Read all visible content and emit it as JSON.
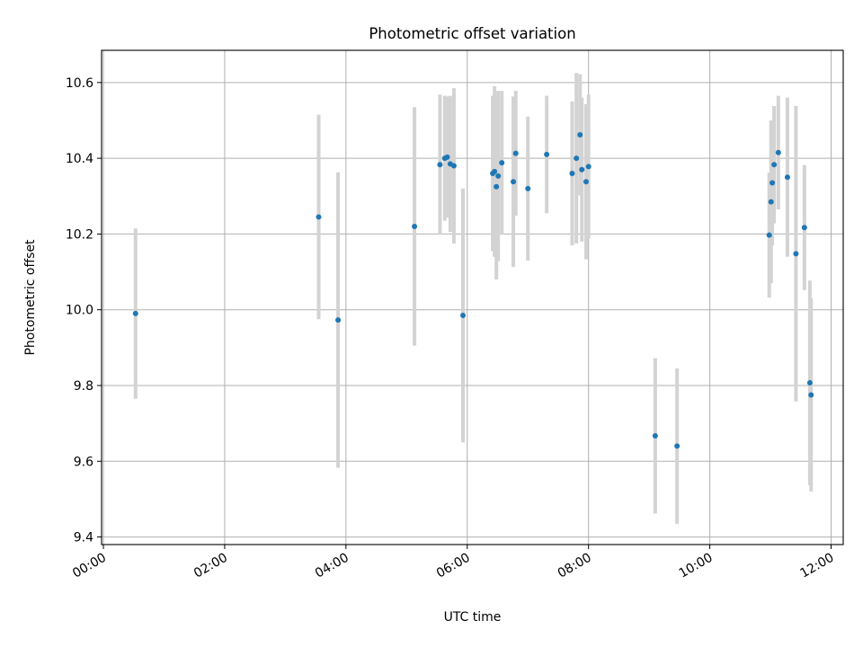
{
  "chart_data": {
    "type": "scatter",
    "title": "Photometric offset variation",
    "xlabel": "UTC time",
    "ylabel": "Photometric offset",
    "x_unit": "UTC hours",
    "xlim": [
      -0.03,
      12.2
    ],
    "ylim": [
      9.38,
      10.685
    ],
    "xticks": [
      {
        "value": 0,
        "label": "00:00"
      },
      {
        "value": 2,
        "label": "02:00"
      },
      {
        "value": 4,
        "label": "04:00"
      },
      {
        "value": 6,
        "label": "06:00"
      },
      {
        "value": 8,
        "label": "08:00"
      },
      {
        "value": 10,
        "label": "10:00"
      },
      {
        "value": 12,
        "label": "12:00"
      }
    ],
    "yticks": [
      {
        "value": 9.4,
        "label": "9.4"
      },
      {
        "value": 9.6,
        "label": "9.6"
      },
      {
        "value": 9.8,
        "label": "9.8"
      },
      {
        "value": 10.0,
        "label": "10.0"
      },
      {
        "value": 10.2,
        "label": "10.2"
      },
      {
        "value": 10.4,
        "label": "10.4"
      },
      {
        "value": 10.6,
        "label": "10.6"
      }
    ],
    "grid": true,
    "legend": "none",
    "marker_color": "#1f77b4",
    "errorbar_color": "#d3d3d3",
    "points": [
      {
        "x": 0.53,
        "y": 9.99,
        "err": 0.225
      },
      {
        "x": 3.55,
        "y": 10.245,
        "err": 0.27
      },
      {
        "x": 3.87,
        "y": 9.973,
        "err": 0.39
      },
      {
        "x": 5.13,
        "y": 10.22,
        "err": 0.315
      },
      {
        "x": 5.55,
        "y": 10.383,
        "err": 0.185
      },
      {
        "x": 5.63,
        "y": 10.4,
        "err": 0.165
      },
      {
        "x": 5.67,
        "y": 10.403,
        "err": 0.16
      },
      {
        "x": 5.72,
        "y": 10.385,
        "err": 0.18
      },
      {
        "x": 5.78,
        "y": 10.38,
        "err": 0.205
      },
      {
        "x": 5.93,
        "y": 9.985,
        "err": 0.335
      },
      {
        "x": 6.42,
        "y": 10.36,
        "err": 0.205
      },
      {
        "x": 6.45,
        "y": 10.365,
        "err": 0.225
      },
      {
        "x": 6.48,
        "y": 10.325,
        "err": 0.245
      },
      {
        "x": 6.51,
        "y": 10.353,
        "err": 0.225
      },
      {
        "x": 6.57,
        "y": 10.388,
        "err": 0.19
      },
      {
        "x": 6.76,
        "y": 10.338,
        "err": 0.225
      },
      {
        "x": 6.8,
        "y": 10.413,
        "err": 0.165
      },
      {
        "x": 7.0,
        "y": 10.32,
        "err": 0.19
      },
      {
        "x": 7.31,
        "y": 10.41,
        "err": 0.155
      },
      {
        "x": 7.73,
        "y": 10.36,
        "err": 0.19
      },
      {
        "x": 7.8,
        "y": 10.4,
        "err": 0.225
      },
      {
        "x": 7.86,
        "y": 10.462,
        "err": 0.16
      },
      {
        "x": 7.89,
        "y": 10.37,
        "err": 0.19
      },
      {
        "x": 7.96,
        "y": 10.338,
        "err": 0.205
      },
      {
        "x": 8.0,
        "y": 10.378,
        "err": 0.19
      },
      {
        "x": 9.1,
        "y": 9.667,
        "err": 0.205
      },
      {
        "x": 9.46,
        "y": 9.64,
        "err": 0.205
      },
      {
        "x": 10.98,
        "y": 10.197,
        "err": 0.165
      },
      {
        "x": 11.01,
        "y": 10.285,
        "err": 0.215
      },
      {
        "x": 11.03,
        "y": 10.335,
        "err": 0.165
      },
      {
        "x": 11.06,
        "y": 10.383,
        "err": 0.155
      },
      {
        "x": 11.13,
        "y": 10.415,
        "err": 0.15
      },
      {
        "x": 11.28,
        "y": 10.35,
        "err": 0.21
      },
      {
        "x": 11.42,
        "y": 10.148,
        "err": 0.39
      },
      {
        "x": 11.56,
        "y": 10.217,
        "err": 0.165
      },
      {
        "x": 11.65,
        "y": 9.807,
        "err": 0.27
      },
      {
        "x": 11.67,
        "y": 9.775,
        "err": 0.255
      }
    ]
  }
}
